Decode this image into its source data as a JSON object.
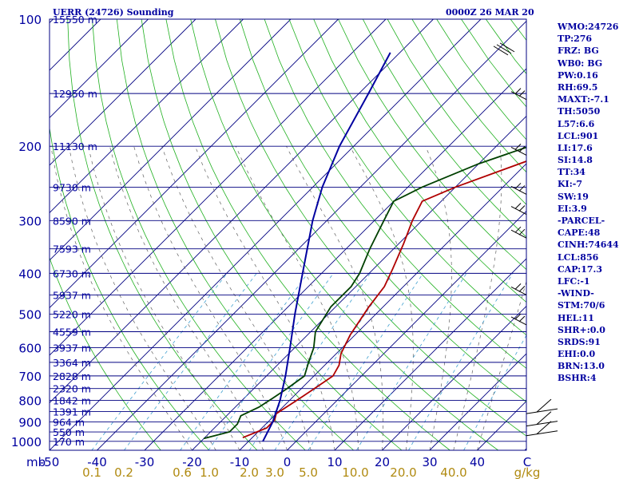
{
  "header": {
    "title": "UERR (24726) Sounding",
    "time": "0000Z 26 MAR 20"
  },
  "chart_data": {
    "type": "line",
    "chart_kind": "skew-t log-p sounding",
    "y_scale": "log",
    "x_axis_label": "C",
    "y_axis_label": "mb",
    "mixing_ratio_unit": "g/kg",
    "pressure_ticks": [
      100,
      200,
      300,
      400,
      500,
      600,
      700,
      800,
      900,
      1000
    ],
    "temperature_ticks": [
      -50,
      -40,
      -30,
      -20,
      -10,
      0,
      10,
      20,
      30,
      40
    ],
    "temperature_tick_labels": [
      "-50",
      "-40",
      "-30",
      "-20",
      "-10",
      "0",
      "10",
      "20",
      "30",
      "40"
    ],
    "mixing_ratio_labels": [
      "0.1",
      "0.2",
      "0.6",
      "1.0",
      "2.0",
      "3.0",
      "5.0",
      "10.0",
      "20.0",
      "40.0"
    ],
    "height_levels": [
      {
        "p": 100,
        "label": "15550 m"
      },
      {
        "p": 150,
        "label": "12950 m"
      },
      {
        "p": 200,
        "label": "11130 m"
      },
      {
        "p": 250,
        "label": "9730 m"
      },
      {
        "p": 300,
        "label": "8590 m"
      },
      {
        "p": 350,
        "label": "7593 m"
      },
      {
        "p": 400,
        "label": "6730 m"
      },
      {
        "p": 450,
        "label": "5937 m"
      },
      {
        "p": 500,
        "label": "5220 m"
      },
      {
        "p": 550,
        "label": "4559 m"
      },
      {
        "p": 600,
        "label": "3937 m"
      },
      {
        "p": 650,
        "label": "3364 m"
      },
      {
        "p": 700,
        "label": "2828 m"
      },
      {
        "p": 750,
        "label": "2320 m"
      },
      {
        "p": 800,
        "label": "1842 m"
      },
      {
        "p": 850,
        "label": "1391 m"
      },
      {
        "p": 900,
        "label": "964 m"
      },
      {
        "p": 950,
        "label": "550 m"
      },
      {
        "p": 1000,
        "label": "170 m"
      }
    ],
    "series": [
      {
        "key": "temperature",
        "color": "#b00000",
        "points": [
          [
            980,
            -12
          ],
          [
            930,
            -9
          ],
          [
            890,
            -9
          ],
          [
            860,
            -10
          ],
          [
            820,
            -9
          ],
          [
            780,
            -8
          ],
          [
            740,
            -7
          ],
          [
            700,
            -6
          ],
          [
            660,
            -7
          ],
          [
            620,
            -9
          ],
          [
            560,
            -11
          ],
          [
            480,
            -13
          ],
          [
            430,
            -14
          ],
          [
            390,
            -16
          ],
          [
            340,
            -19
          ],
          [
            300,
            -22
          ],
          [
            270,
            -24
          ],
          [
            250,
            -20
          ],
          [
            200,
            -5
          ],
          [
            170,
            5
          ],
          [
            140,
            15
          ],
          [
            110,
            30
          ],
          [
            95,
            40
          ]
        ]
      },
      {
        "key": "dewpoint",
        "color": "#004000",
        "points": [
          [
            985,
            -20
          ],
          [
            950,
            -16
          ],
          [
            910,
            -16
          ],
          [
            870,
            -17
          ],
          [
            830,
            -15
          ],
          [
            790,
            -14
          ],
          [
            750,
            -13
          ],
          [
            700,
            -12
          ],
          [
            650,
            -14
          ],
          [
            600,
            -16
          ],
          [
            550,
            -19
          ],
          [
            480,
            -21
          ],
          [
            430,
            -21
          ],
          [
            400,
            -22
          ],
          [
            350,
            -25
          ],
          [
            300,
            -28
          ],
          [
            270,
            -30
          ],
          [
            250,
            -27
          ],
          [
            220,
            -20
          ],
          [
            200,
            -13
          ],
          [
            170,
            -3
          ],
          [
            140,
            6
          ],
          [
            110,
            17
          ],
          [
            95,
            25
          ]
        ]
      },
      {
        "key": "parcel",
        "color": "#0000a0",
        "points": [
          [
            1000,
            -7
          ],
          [
            900,
            -9
          ],
          [
            800,
            -12
          ],
          [
            700,
            -16
          ],
          [
            600,
            -21
          ],
          [
            500,
            -27
          ],
          [
            400,
            -34
          ],
          [
            300,
            -43
          ],
          [
            250,
            -48
          ],
          [
            200,
            -53
          ],
          [
            150,
            -58
          ],
          [
            120,
            -62
          ]
        ]
      }
    ],
    "wind_barbs": [
      {
        "p": 120,
        "kind": "flag"
      },
      {
        "p": 155,
        "kind": "barb"
      },
      {
        "p": 210,
        "kind": "barb"
      },
      {
        "p": 260,
        "kind": "barb"
      },
      {
        "p": 290,
        "kind": "barb"
      },
      {
        "p": 330,
        "kind": "barb"
      },
      {
        "p": 450,
        "kind": "barb"
      },
      {
        "p": 530,
        "kind": "barb"
      },
      {
        "p": 860,
        "kind": "barb"
      },
      {
        "p": 920,
        "kind": "barb"
      },
      {
        "p": 970,
        "kind": "barb"
      }
    ]
  },
  "indices": [
    "WMO:24726",
    "TP:276",
    "FRZ: BG",
    "WB0: BG",
    "PW:0.16",
    "RH:69.5",
    "MAXT:-7.1",
    "TH:5050",
    "L57:6.6",
    "LCL:901",
    "LI:17.6",
    "SI:14.8",
    "TT:34",
    "KI:-7",
    "SW:19",
    "EI:3.9",
    "-PARCEL-",
    "CAPE:48",
    "CINH:74644",
    "LCL:856",
    "CAP:17.3",
    "LFC:-1",
    "-WIND-",
    "STM:70/6",
    "HEL:11",
    "SHR+:0.0",
    "SRDS:91",
    "EHI:0.0",
    "BRN:13.0",
    "BSHR:4"
  ]
}
